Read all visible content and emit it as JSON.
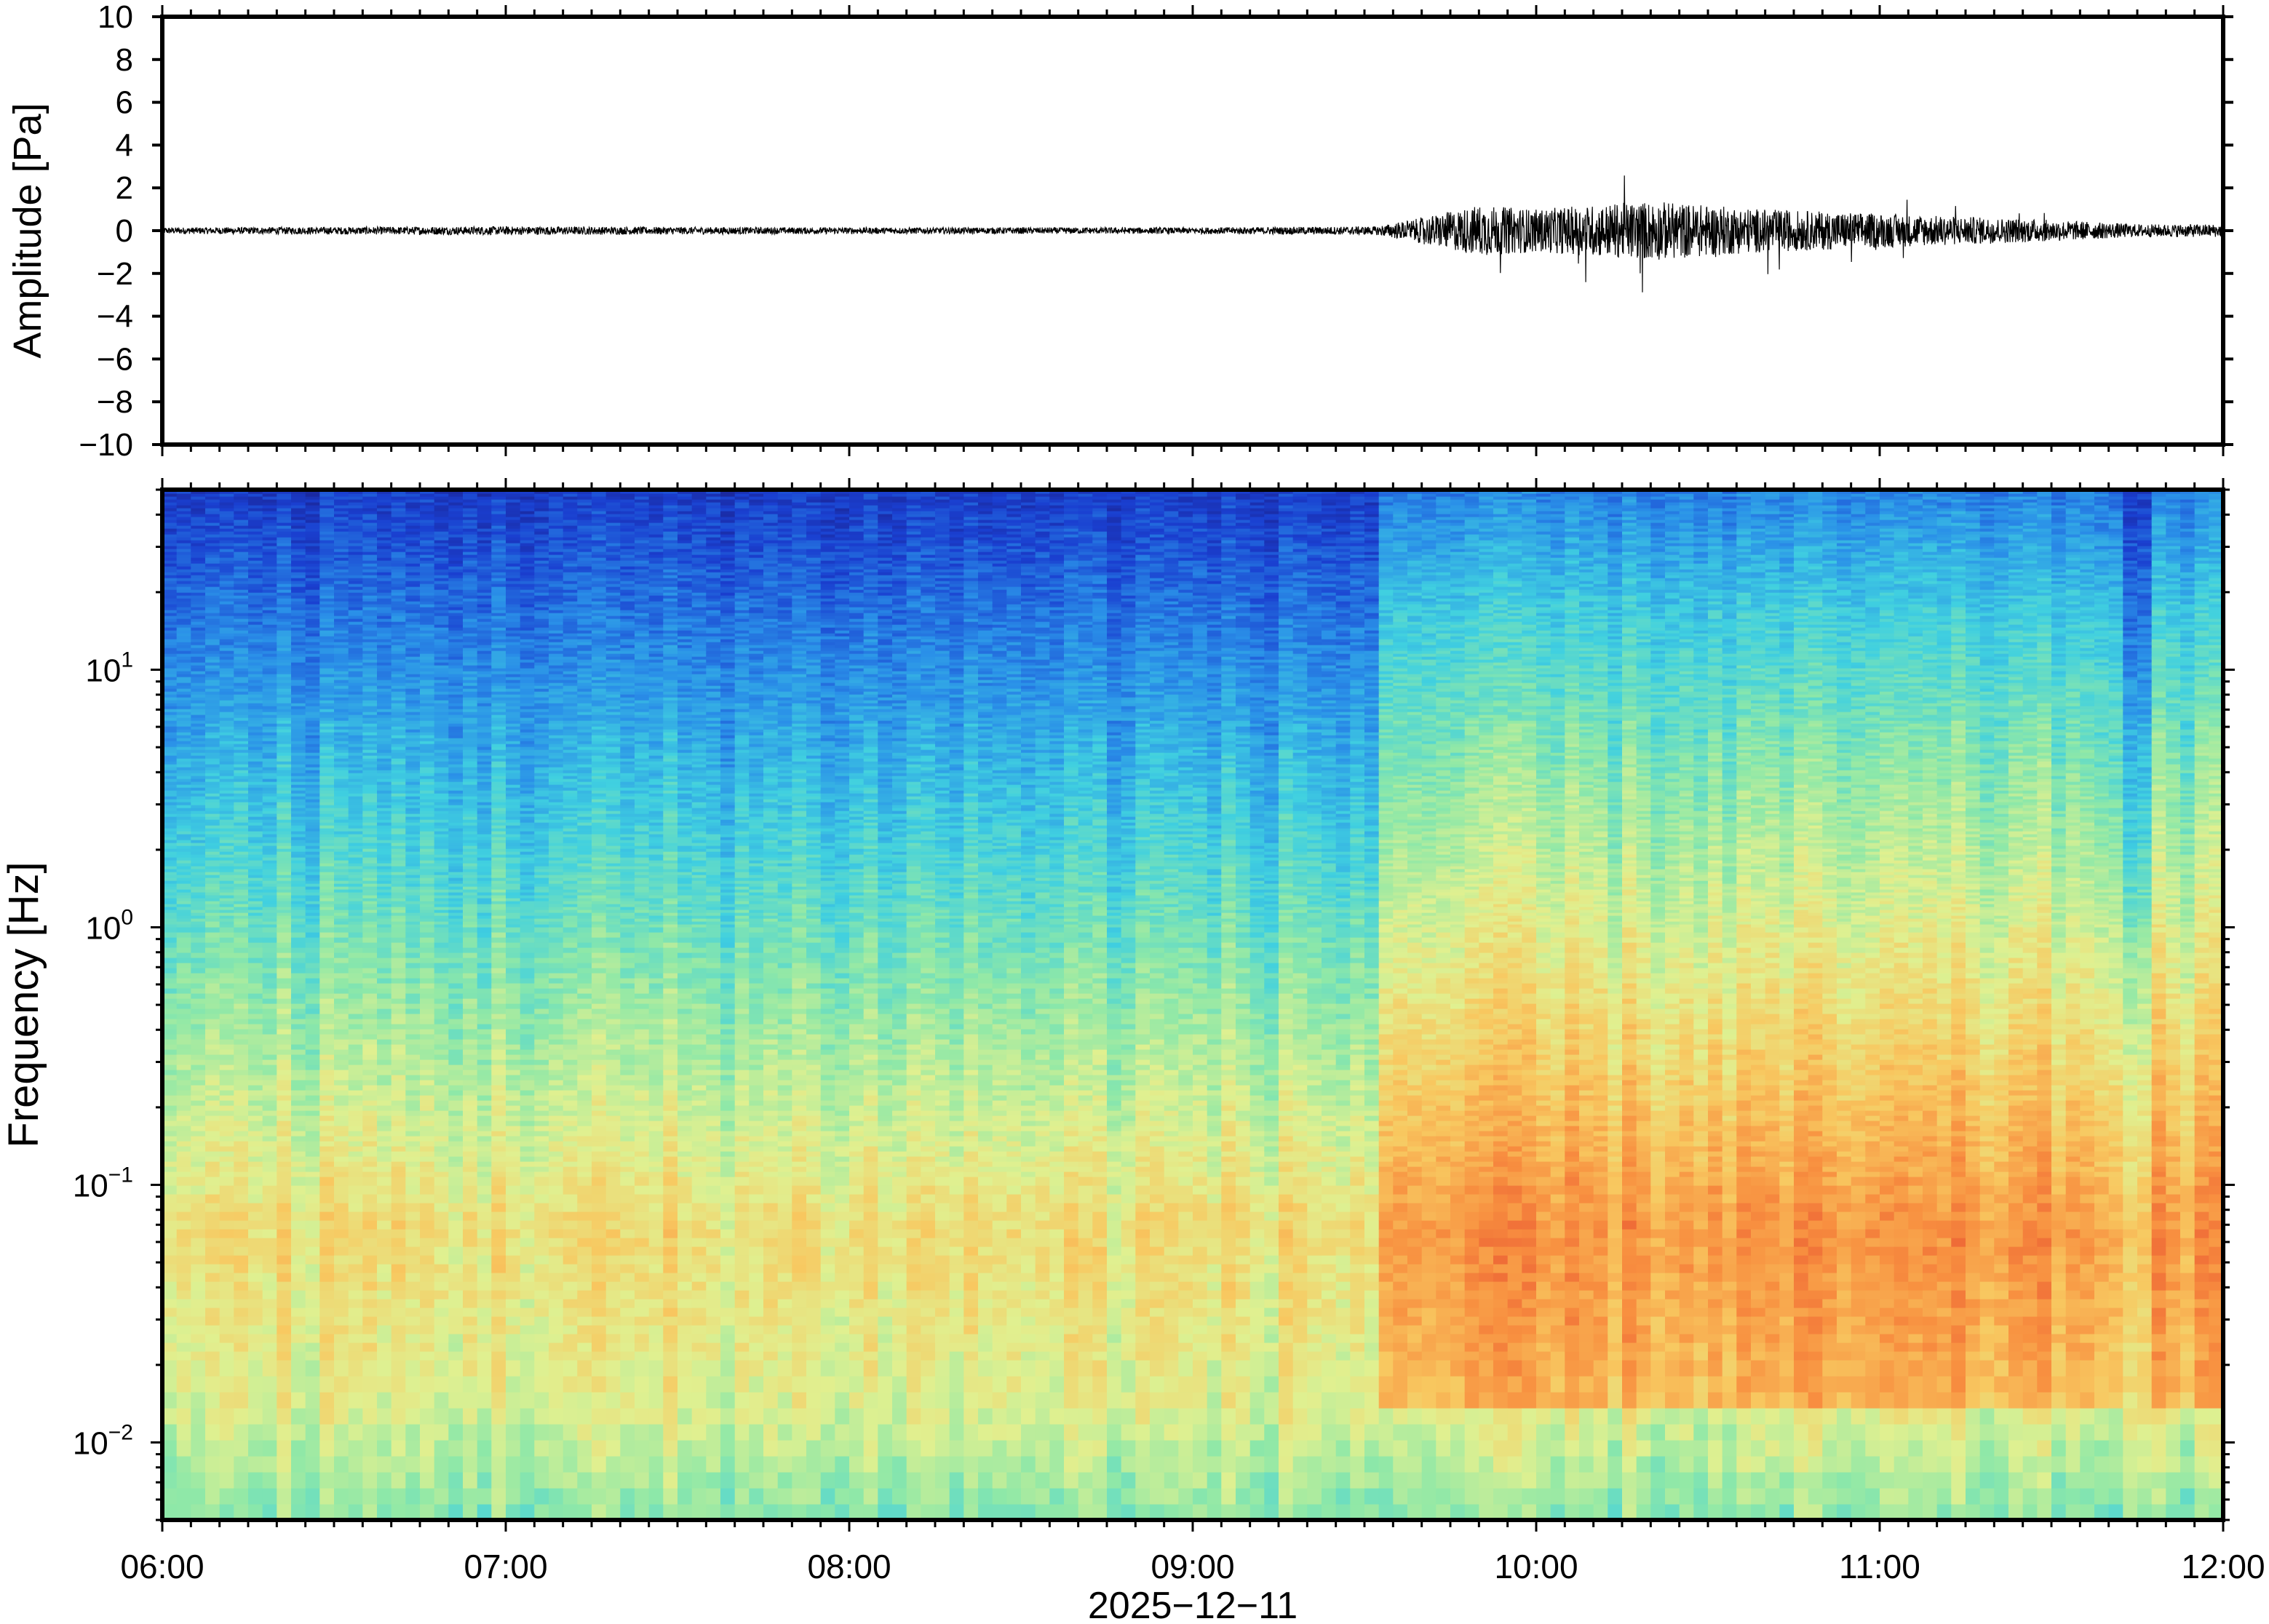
{
  "chart_data": [
    {
      "type": "line",
      "ylabel": "Amplitude [Pa]",
      "ylim": [
        -10,
        10
      ],
      "yticks": [
        10,
        8,
        6,
        4,
        2,
        0,
        -2,
        -4,
        -6,
        -8,
        -10
      ],
      "ytick_labels": [
        "10",
        "8",
        "6",
        "4",
        "2",
        "0",
        "−2",
        "−4",
        "−6",
        "−8",
        "−10"
      ],
      "x_range": [
        "06:00",
        "12:00"
      ],
      "series_color": "#000000",
      "envelope": [
        {
          "time": "06:00",
          "amp": 0.15
        },
        {
          "time": "07:00",
          "amp": 0.2
        },
        {
          "time": "08:00",
          "amp": 0.15
        },
        {
          "time": "09:00",
          "amp": 0.15
        },
        {
          "time": "09:32",
          "amp": 0.2
        },
        {
          "time": "09:40",
          "amp": 0.6
        },
        {
          "time": "09:50",
          "amp": 1.2
        },
        {
          "time": "10:00",
          "amp": 1.0
        },
        {
          "time": "10:20",
          "amp": 1.4
        },
        {
          "time": "10:40",
          "amp": 1.0
        },
        {
          "time": "11:00",
          "amp": 0.8
        },
        {
          "time": "11:30",
          "amp": 0.5
        },
        {
          "time": "11:45",
          "amp": 0.3
        },
        {
          "time": "12:00",
          "amp": 0.3
        }
      ]
    },
    {
      "type": "heatmap",
      "ylabel": "Frequency [Hz]",
      "xlabel": "2025−12−11",
      "yscale": "log",
      "ylim": [
        0.005,
        50
      ],
      "yticks": [
        {
          "value": 10,
          "base": "10",
          "exp": "1"
        },
        {
          "value": 1,
          "base": "10",
          "exp": "0"
        },
        {
          "value": 0.1,
          "base": "10",
          "exp": "−1"
        },
        {
          "value": 0.01,
          "base": "10",
          "exp": "−2"
        }
      ],
      "x_ticks": [
        "06:00",
        "07:00",
        "08:00",
        "09:00",
        "10:00",
        "11:00",
        "12:00"
      ],
      "colormap": "jet-like",
      "colors": [
        "#1a1a80",
        "#1a3fd0",
        "#2a90e8",
        "#40d0e0",
        "#8ee8a8",
        "#e0f090",
        "#f8c860",
        "#f89040",
        "#e85030"
      ],
      "activity_onset": "09:32",
      "quiet_gap": [
        "11:42",
        "11:47"
      ]
    }
  ]
}
